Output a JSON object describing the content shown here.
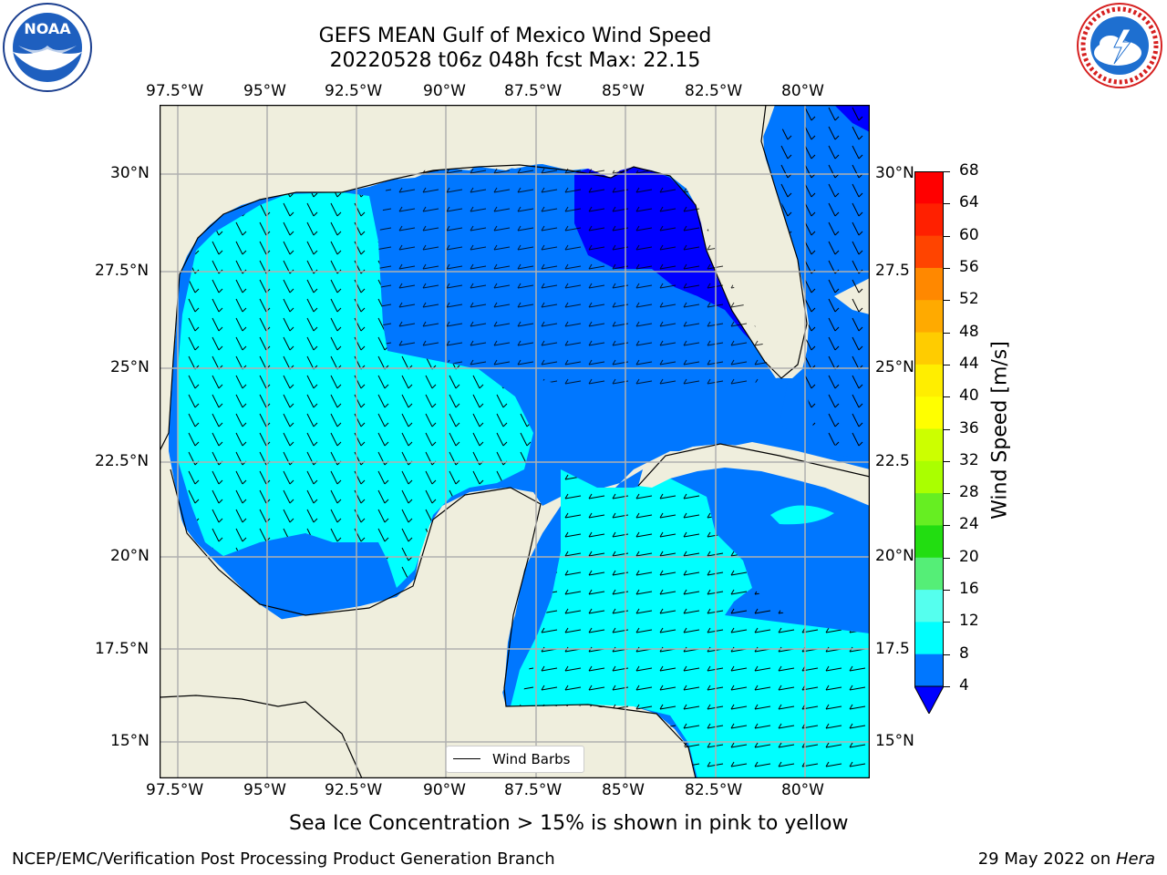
{
  "title": {
    "line1": "GEFS MEAN Gulf of Mexico Wind Speed",
    "line2": "20220528 t06z 048h fcst   Max: 22.15"
  },
  "logos": {
    "left_icon": "noaa-logo",
    "left_text": "NOAA",
    "right_icon": "nws-logo"
  },
  "axes": {
    "lon_ticks": [
      "97.5°W",
      "95°W",
      "92.5°W",
      "90°W",
      "87.5°W",
      "85°W",
      "82.5°W",
      "80°W"
    ],
    "lat_ticks_left": [
      "30°N",
      "27.5°N",
      "25°N",
      "22.5°N",
      "20°N",
      "17.5°N",
      "15°N"
    ],
    "lat_ticks_right": [
      "30°N",
      "27.5",
      "25°N",
      "22.5",
      "20°N",
      "17.5",
      "15°N"
    ]
  },
  "legend": {
    "label": "Wind Barbs"
  },
  "colorbar": {
    "label": "Wind Speed [m/s]",
    "ticks": [
      "68",
      "64",
      "60",
      "56",
      "52",
      "48",
      "44",
      "40",
      "36",
      "32",
      "28",
      "24",
      "20",
      "16",
      "12",
      "8",
      "4"
    ],
    "colors_top_to_bottom": [
      "#ff0000",
      "#ff2000",
      "#ff4400",
      "#ff6600",
      "#ff8800",
      "#ffaa00",
      "#ffcc00",
      "#ffee00",
      "#ffff00",
      "#eeff00",
      "#ccff00",
      "#aaff00",
      "#66ee22",
      "#22dd11",
      "#55ee77",
      "#aaffee",
      "#55ffee",
      "#00ffff",
      "#0077ff"
    ],
    "extend_color": "#0000ff"
  },
  "caption": "Sea Ice Concentration > 15% is shown in pink to yellow",
  "footer": {
    "left": "NCEP/EMC/Verification Post Processing Product Generation Branch",
    "right_prefix": "29 May 2022 on ",
    "right_host": "Hera"
  },
  "colors": {
    "land": "#efeedd",
    "water_blue": "#0077ff",
    "water_dark": "#0000ff",
    "water_cyan": "#00ffff",
    "water_lightcyan": "#55ffee"
  }
}
